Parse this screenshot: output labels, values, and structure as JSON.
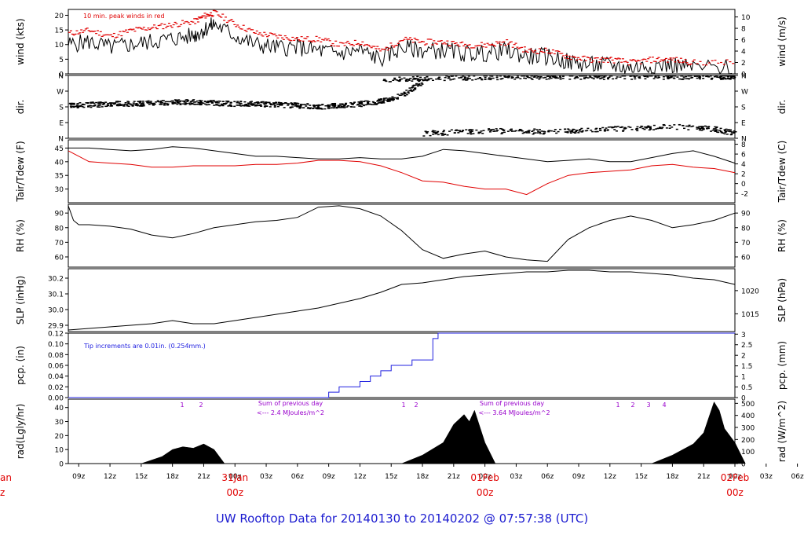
{
  "footer": {
    "title": "UW Rooftop Data for 20140130  to  20140202 @ 07:57:38  (UTC)"
  },
  "chart_data": {
    "type": "line",
    "panels": [
      {
        "id": "wind",
        "ylabel_left": "wind (kts)",
        "ylabel_right": "wind (m/s)",
        "yticks_left": [
          "0",
          "5",
          "10",
          "15",
          "20"
        ],
        "yticks_right": [
          "0",
          "2",
          "4",
          "6",
          "8",
          "10"
        ],
        "ylim_left": [
          0,
          22
        ],
        "annotation": "10 min. peak winds in red",
        "series": [
          {
            "label": "wind speed",
            "color": "#000000",
            "x": [
              8,
              10,
              12,
              14,
              16,
              18,
              20,
              21,
              22,
              24,
              26,
              28,
              30,
              32,
              34,
              36,
              38,
              40,
              42,
              44,
              46,
              48,
              50,
              52,
              54,
              56,
              58,
              60,
              62,
              64,
              66,
              68,
              72
            ],
            "y": [
              10,
              11,
              9,
              10,
              11,
              12,
              13,
              15,
              17,
              13,
              10,
              9,
              9,
              8,
              7,
              8,
              5,
              9,
              8,
              8,
              7,
              7,
              8,
              6,
              6,
              4,
              3,
              3,
              2,
              3,
              3,
              2,
              2
            ]
          },
          {
            "label": "10 min. peak winds",
            "color": "#e00000",
            "x": [
              8,
              10,
              12,
              14,
              16,
              18,
              20,
              21,
              22,
              24,
              26,
              28,
              30,
              32,
              34,
              36,
              38,
              40,
              42,
              44,
              46,
              48,
              50,
              52,
              54,
              56,
              58,
              60,
              62,
              64,
              66,
              68,
              72
            ],
            "y": [
              14,
              15,
              13,
              15,
              16,
              17,
              18,
              20,
              21,
              17,
              14,
              13,
              12,
              12,
              10,
              11,
              8,
              12,
              11,
              11,
              10,
              10,
              11,
              8,
              8,
              6,
              5,
              5,
              4,
              5,
              5,
              4,
              4
            ]
          }
        ]
      },
      {
        "id": "dir",
        "ylabel_left": "dir.",
        "ylabel_right": "dir.",
        "yticks_left": [
          "N",
          "E",
          "S",
          "W",
          "N"
        ],
        "yticks_right": [
          "N",
          "E",
          "S",
          "W",
          "N"
        ],
        "ylim_left": [
          0,
          360
        ],
        "series": [
          {
            "label": "direction",
            "color": "#000000",
            "x": [
              8,
              10,
              12,
              14,
              16,
              18,
              20,
              22,
              24,
              26,
              28,
              30,
              32,
              34,
              36,
              38,
              40,
              42
            ],
            "y": [
              190,
              195,
              200,
              200,
              205,
              210,
              210,
              205,
              200,
              200,
              195,
              190,
              185,
              190,
              200,
              215,
              250,
              330
            ]
          },
          {
            "label": "direction (north band)",
            "color": "#000000",
            "x": [
              38,
              42,
              46,
              50,
              54,
              58,
              62,
              66,
              70,
              72
            ],
            "y": [
              340,
              345,
              350,
              355,
              355,
              355,
              355,
              355,
              355,
              355
            ]
          },
          {
            "label": "direction (east band)",
            "color": "#000000",
            "x": [
              42,
              46,
              50,
              54,
              58,
              62,
              66,
              70,
              72
            ],
            "y": [
              30,
              40,
              45,
              40,
              50,
              60,
              70,
              55,
              30
            ]
          }
        ]
      },
      {
        "id": "temp",
        "ylabel_left": "Tair/Tdew (F)",
        "ylabel_right": "Tair/Tdew (C)",
        "yticks_left": [
          "30",
          "35",
          "40",
          "45"
        ],
        "yticks_right": [
          "-2",
          "0",
          "2",
          "4",
          "6",
          "8"
        ],
        "ylim_left": [
          25,
          48
        ],
        "series": [
          {
            "label": "Tair",
            "color": "#000000",
            "x": [
              8,
              10,
              12,
              14,
              16,
              18,
              20,
              22,
              24,
              26,
              28,
              30,
              32,
              34,
              36,
              38,
              40,
              42,
              44,
              46,
              48,
              50,
              52,
              54,
              56,
              58,
              60,
              62,
              64,
              66,
              68,
              70,
              72
            ],
            "y": [
              45,
              45,
              44.5,
              44,
              44.5,
              45.5,
              45,
              44,
              43,
              42,
              42,
              41.5,
              41,
              41,
              41.5,
              41,
              41,
              42,
              44.5,
              44,
              43,
              42,
              41,
              40,
              40.5,
              41,
              40,
              40,
              41.5,
              43,
              44,
              42,
              39.5
            ]
          },
          {
            "label": "Tdew",
            "color": "#e00000",
            "x": [
              8,
              10,
              12,
              14,
              16,
              18,
              20,
              22,
              24,
              26,
              28,
              30,
              32,
              34,
              36,
              38,
              40,
              42,
              44,
              46,
              48,
              50,
              52,
              54,
              56,
              58,
              60,
              62,
              64,
              66,
              68,
              70,
              72
            ],
            "y": [
              44,
              40,
              39.5,
              39,
              38,
              38,
              38.5,
              38.5,
              38.5,
              39,
              39,
              39.5,
              40.5,
              40.5,
              40,
              38.5,
              36,
              33,
              32.5,
              31,
              30,
              30,
              28,
              32,
              35,
              36,
              36.5,
              37,
              38.5,
              39,
              38,
              37.5,
              36
            ]
          }
        ]
      },
      {
        "id": "rh",
        "ylabel_left": "RH (%)",
        "ylabel_right": "RH (%)",
        "yticks_left": [
          "60",
          "70",
          "80",
          "90"
        ],
        "yticks_right": [
          "60",
          "70",
          "80",
          "90"
        ],
        "ylim_left": [
          53,
          96
        ],
        "series": [
          {
            "label": "RH",
            "color": "#000000",
            "x": [
              8,
              8.5,
              9,
              10,
              12,
              14,
              16,
              18,
              20,
              22,
              24,
              26,
              28,
              30,
              32,
              34,
              36,
              38,
              40,
              42,
              44,
              46,
              48,
              50,
              52,
              54,
              56,
              58,
              60,
              62,
              64,
              66,
              68,
              70,
              72
            ],
            "y": [
              95,
              85,
              82,
              82,
              81,
              79,
              75,
              73,
              76,
              80,
              82,
              84,
              85,
              87,
              94,
              95,
              93,
              88,
              78,
              65,
              59,
              62,
              64,
              60,
              58,
              57,
              72,
              80,
              85,
              88,
              85,
              80,
              82,
              85,
              90
            ]
          }
        ]
      },
      {
        "id": "slp",
        "ylabel_left": "SLP (inHg)",
        "ylabel_right": "SLP (hPa)",
        "yticks_left": [
          "29.9",
          "30.0",
          "30.1",
          "30.2"
        ],
        "yticks_right": [
          "1015",
          "1020"
        ],
        "ylim_left": [
          29.86,
          30.26
        ],
        "series": [
          {
            "label": "SLP",
            "color": "#000000",
            "x": [
              8,
              10,
              12,
              14,
              16,
              18,
              20,
              22,
              24,
              26,
              28,
              30,
              32,
              34,
              36,
              38,
              40,
              42,
              44,
              46,
              48,
              50,
              52,
              54,
              56,
              58,
              60,
              62,
              64,
              66,
              68,
              70,
              72
            ],
            "y": [
              29.87,
              29.88,
              29.89,
              29.9,
              29.91,
              29.93,
              29.91,
              29.91,
              29.93,
              29.95,
              29.97,
              29.99,
              30.01,
              30.04,
              30.07,
              30.11,
              30.16,
              30.17,
              30.19,
              30.21,
              30.22,
              30.23,
              30.24,
              30.24,
              30.25,
              30.25,
              30.24,
              30.24,
              30.23,
              30.22,
              30.2,
              30.19,
              30.16
            ]
          }
        ]
      },
      {
        "id": "pcp",
        "ylabel_left": "pcp. (in)",
        "ylabel_right": "pcp. (mm)",
        "yticks_left": [
          "0.00",
          "0.02",
          "0.04",
          "0.06",
          "0.08",
          "0.10",
          "0.12"
        ],
        "yticks_right": [
          "0",
          "0.5",
          "1",
          "1.5",
          "2",
          "2.5",
          "3"
        ],
        "ylim_left": [
          0,
          0.12
        ],
        "annotation": "Tip increments are 0.01in. (0.254mm.)",
        "series": [
          {
            "label": "precipitation",
            "color": "#2020e0",
            "x": [
              8,
              32,
              33,
              34,
              36,
              37,
              38,
              39,
              41,
              43,
              43.5,
              70,
              72
            ],
            "y": [
              0,
              0,
              0.01,
              0.02,
              0.03,
              0.04,
              0.05,
              0.06,
              0.07,
              0.11,
              0.12,
              0.12,
              0.12
            ]
          }
        ]
      },
      {
        "id": "rad",
        "ylabel_left": "rad(Lgly/hr)",
        "ylabel_right": "rad (W/m^2)",
        "yticks_left": [
          "0",
          "10",
          "20",
          "30",
          "40"
        ],
        "yticks_right": [
          "0",
          "100",
          "200",
          "300",
          "400",
          "500"
        ],
        "ylim_left": [
          0,
          46
        ],
        "annotations": [
          "Sum of previous day",
          "<--- 2.4 MJoules/m^2",
          "Sum of previous day",
          "<--- 3.64 MJoules/m^2"
        ],
        "series": [
          {
            "label": "radiation",
            "color": "#000000",
            "x": [
              15,
              17,
              18,
              19,
              20,
              21,
              22,
              23,
              40,
              42,
              44,
              45,
              46,
              46.5,
              47,
              48,
              49,
              64,
              66,
              68,
              69,
              70,
              70.5,
              71,
              72,
              73
            ],
            "y": [
              0,
              5,
              10,
              12,
              11,
              14,
              10,
              0,
              0,
              6,
              15,
              28,
              35,
              30,
              38,
              15,
              0,
              0,
              6,
              14,
              22,
              44,
              38,
              25,
              15,
              0
            ]
          }
        ],
        "markers": [
          "1",
          "2",
          "1",
          "2",
          "1",
          "2",
          "3",
          "4"
        ]
      }
    ],
    "x_ticks": [
      "09z",
      "12z",
      "15z",
      "18z",
      "21z",
      "00z",
      "03z",
      "06z",
      "09z",
      "12z",
      "15z",
      "18z",
      "21z",
      "00z",
      "03z",
      "06z",
      "09z",
      "12z",
      "15z",
      "18z",
      "21z",
      "00z",
      "03z",
      "06z"
    ],
    "x_day_labels": [
      {
        "day": "31Jan",
        "hour": "00z"
      },
      {
        "day": "01Feb",
        "hour": "00z"
      },
      {
        "day": "02Feb",
        "hour": "00z"
      }
    ],
    "x_edge_label": {
      "day": "an",
      "hour": "z"
    },
    "colors": {
      "text": "#000000",
      "red": "#e00000",
      "blue": "#2020e0",
      "purple": "#9900cc",
      "footer": "#1c1cd0"
    }
  }
}
